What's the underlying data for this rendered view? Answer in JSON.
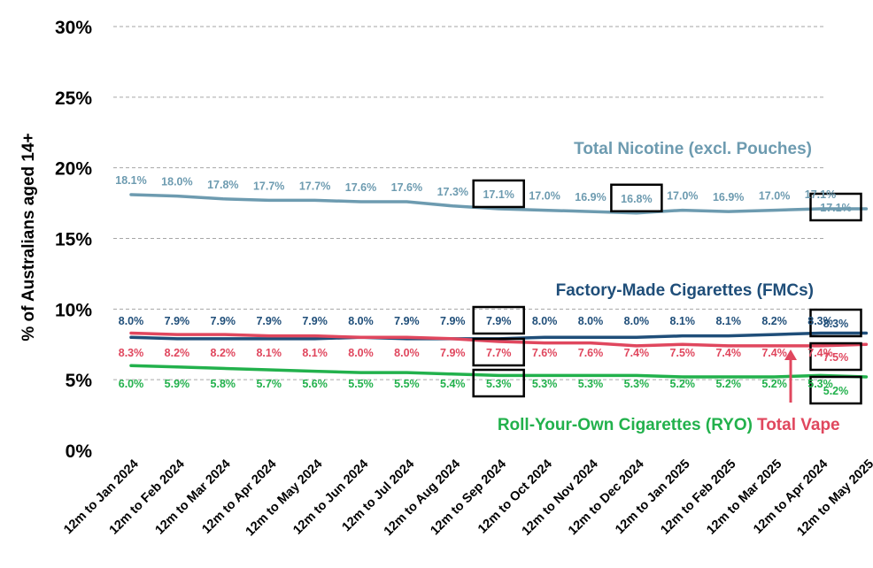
{
  "chart_data": {
    "type": "line",
    "ylabel": "% of Australians aged 14+",
    "ylim": [
      0,
      30
    ],
    "yticks": [
      "0%",
      "5%",
      "10%",
      "15%",
      "20%",
      "25%",
      "30%"
    ],
    "grid": true,
    "categories": [
      "12m to Jan 2024",
      "12m to Feb 2024",
      "12m to Mar 2024",
      "12m to Apr 2024",
      "12m to May 2024",
      "12m to Jun 2024",
      "12m to Jul 2024",
      "12m to Aug 2024",
      "12m to Sep 2024",
      "12m to Oct 2024",
      "12m to Nov 2024",
      "12m to Dec 2024",
      "12m to Jan 2025",
      "12m to Feb 2025",
      "12m to Mar 2025",
      "12m to Apr 2024",
      "12m to May 2025"
    ],
    "series": [
      {
        "name": "Total Nicotine (excl. Pouches)",
        "color": "#6d9bb0",
        "values": [
          18.1,
          18.0,
          17.8,
          17.7,
          17.7,
          17.6,
          17.6,
          17.3,
          17.1,
          17.0,
          16.9,
          16.8,
          17.0,
          16.9,
          17.0,
          17.1,
          17.1
        ],
        "labels": [
          "18.1%",
          "18.0%",
          "17.8%",
          "17.7%",
          "17.7%",
          "17.6%",
          "17.6%",
          "17.3%",
          "17.1%",
          "17.0%",
          "16.9%",
          "16.8%",
          "17.0%",
          "16.9%",
          "17.0%",
          "17.1%",
          "17.1%"
        ],
        "boxed": [
          8,
          11,
          16
        ]
      },
      {
        "name": "Factory-Made Cigarettes (FMCs)",
        "color": "#1f4e79",
        "values": [
          8.0,
          7.9,
          7.9,
          7.9,
          7.9,
          8.0,
          7.9,
          7.9,
          7.9,
          8.0,
          8.0,
          8.0,
          8.1,
          8.1,
          8.2,
          8.3,
          8.3
        ],
        "labels": [
          "8.0%",
          "7.9%",
          "7.9%",
          "7.9%",
          "7.9%",
          "8.0%",
          "7.9%",
          "7.9%",
          "7.9%",
          "8.0%",
          "8.0%",
          "8.0%",
          "8.1%",
          "8.1%",
          "8.2%",
          "8.3%",
          "8.3%"
        ],
        "boxed": [
          8,
          16
        ]
      },
      {
        "name": "Total Vape",
        "color": "#e0475e",
        "values": [
          8.3,
          8.2,
          8.2,
          8.1,
          8.1,
          8.0,
          8.0,
          7.9,
          7.7,
          7.6,
          7.6,
          7.4,
          7.5,
          7.4,
          7.4,
          7.4,
          7.5
        ],
        "labels": [
          "8.3%",
          "8.2%",
          "8.2%",
          "8.1%",
          "8.1%",
          "8.0%",
          "8.0%",
          "7.9%",
          "7.7%",
          "7.6%",
          "7.6%",
          "7.4%",
          "7.5%",
          "7.4%",
          "7.4%",
          "7.4%",
          "7.5%"
        ],
        "boxed": [
          8,
          16
        ]
      },
      {
        "name": "Roll-Your-Own Cigarettes (RYO)",
        "color": "#22b14c",
        "values": [
          6.0,
          5.9,
          5.8,
          5.7,
          5.6,
          5.5,
          5.5,
          5.4,
          5.3,
          5.3,
          5.3,
          5.3,
          5.2,
          5.2,
          5.2,
          5.3,
          5.2
        ],
        "labels": [
          "6.0%",
          "5.9%",
          "5.8%",
          "5.7%",
          "5.6%",
          "5.5%",
          "5.5%",
          "5.4%",
          "5.3%",
          "5.3%",
          "5.3%",
          "5.3%",
          "5.2%",
          "5.2%",
          "5.2%",
          "5.3%",
          "5.2%"
        ],
        "boxed": [
          8,
          16
        ]
      }
    ],
    "annotations": {
      "vape_arrow_color": "#e0475e",
      "highlight_box_color": "#000000"
    }
  }
}
